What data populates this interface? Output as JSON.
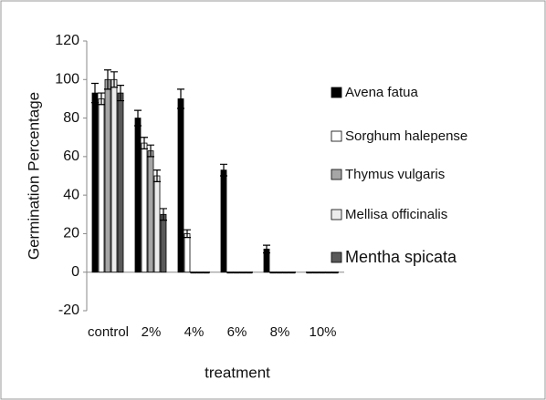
{
  "chart_data": {
    "type": "bar",
    "x_label": "treatment",
    "y_label": "Germination Percentage",
    "categories": [
      "control",
      "2%",
      "4%",
      "6%",
      "8%",
      "10%"
    ],
    "ylim": [
      -20,
      120
    ],
    "yticks": [
      -20,
      0,
      20,
      40,
      60,
      80,
      100,
      120
    ],
    "legend": "right",
    "series": [
      {
        "name": "Avena fatua",
        "color": "#000000",
        "values": [
          93,
          80,
          90,
          53,
          12,
          0
        ],
        "errors": [
          5,
          4,
          5,
          3,
          2,
          0
        ]
      },
      {
        "name": "Sorghum halepense",
        "color": "#ffffff",
        "values": [
          90,
          67,
          20,
          0,
          0,
          0
        ],
        "errors": [
          3,
          3,
          2,
          0,
          0,
          0
        ]
      },
      {
        "name": "Thymus vulgaris",
        "color": "#a6a6a6",
        "values": [
          100,
          63,
          0,
          0,
          0,
          0
        ],
        "errors": [
          5,
          3,
          0,
          0,
          0,
          0
        ]
      },
      {
        "name": "Mellisa officinalis",
        "color": "#ececec",
        "values": [
          100,
          50,
          0,
          0,
          0,
          0
        ],
        "errors": [
          4,
          3,
          0,
          0,
          0,
          0
        ]
      },
      {
        "name": "Mentha spicata",
        "color": "#595959",
        "values": [
          93,
          30,
          0,
          0,
          0,
          0
        ],
        "errors": [
          4,
          3,
          0,
          0,
          0,
          0
        ]
      }
    ]
  }
}
